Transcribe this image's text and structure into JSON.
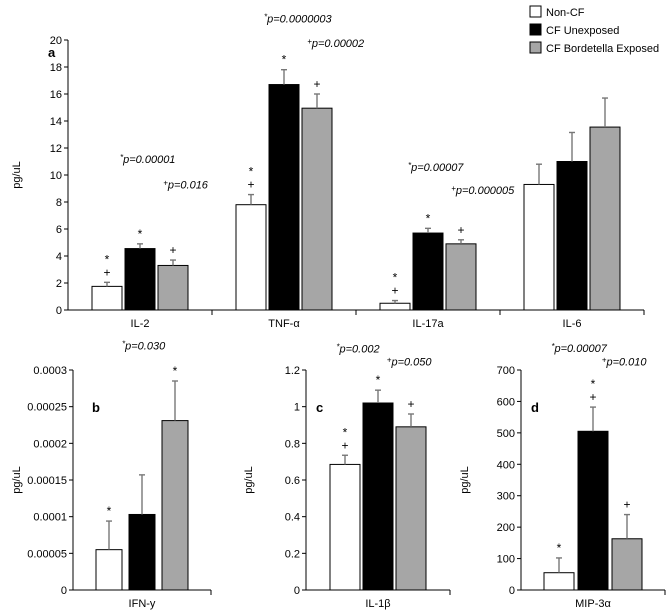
{
  "legend": [
    {
      "label": "Non-CF",
      "color": "#ffffff"
    },
    {
      "label": "CF Unexposed",
      "color": "#000000"
    },
    {
      "label": "CF Bordetella Exposed",
      "color": "#a6a6a6"
    }
  ],
  "chart_data": [
    {
      "id": "a",
      "type": "bar",
      "panel_label": "a",
      "ylabel": "pg/uL",
      "ylim": [
        0,
        20
      ],
      "yticks": [
        "0",
        "2",
        "4",
        "6",
        "8",
        "10",
        "12",
        "14",
        "16",
        "18",
        "20"
      ],
      "categories": [
        "IL-2",
        "TNF-α",
        "IL-17a",
        "IL-6"
      ],
      "series": [
        {
          "name": "Non-CF",
          "values": [
            1.75,
            7.8,
            0.5,
            9.3
          ],
          "errors": [
            0.3,
            0.75,
            0.2,
            1.5
          ]
        },
        {
          "name": "CF Unexposed",
          "values": [
            4.55,
            16.7,
            5.7,
            11.0
          ],
          "errors": [
            0.35,
            1.1,
            0.35,
            2.15
          ]
        },
        {
          "name": "CF Bordetella Exposed",
          "values": [
            3.3,
            14.95,
            4.9,
            13.55
          ],
          "errors": [
            0.4,
            1.05,
            0.3,
            2.15
          ]
        }
      ],
      "markers": [
        {
          "category": 0,
          "series": 0,
          "text": "*\n+"
        },
        {
          "category": 0,
          "series": 1,
          "text": "*"
        },
        {
          "category": 0,
          "series": 2,
          "text": "+"
        },
        {
          "category": 1,
          "series": 0,
          "text": "*\n+"
        },
        {
          "category": 1,
          "series": 1,
          "text": "*"
        },
        {
          "category": 1,
          "series": 2,
          "text": "+"
        },
        {
          "category": 2,
          "series": 0,
          "text": "*\n+"
        },
        {
          "category": 2,
          "series": 1,
          "text": "*"
        },
        {
          "category": 2,
          "series": 2,
          "text": "+"
        }
      ],
      "annotations": [
        {
          "text": "*p=0.00001",
          "category": 0,
          "y": 10.9
        },
        {
          "text": "+p=0.016",
          "category": 0.3,
          "y": 9.0
        },
        {
          "text": "*p=0.0000003",
          "category": 1,
          "y": 21.3
        },
        {
          "text": "+p=0.00002",
          "category": 1.3,
          "y": 19.5
        },
        {
          "text": "*p=0.00007",
          "category": 2,
          "y": 10.3
        },
        {
          "text": "+p=0.000005",
          "category": 2.3,
          "y": 8.6
        }
      ]
    },
    {
      "id": "b",
      "type": "bar",
      "panel_label": "b",
      "ylabel": "pg/uL",
      "ylim": [
        0,
        0.0003
      ],
      "yticks": [
        "0",
        "0.00005",
        "0.0001",
        "0.00015",
        "0.0002",
        "0.00025",
        "0.0003"
      ],
      "categories": [
        "IFN-y"
      ],
      "series": [
        {
          "name": "Non-CF",
          "values": [
            5.5e-05
          ],
          "errors": [
            3.9e-05
          ]
        },
        {
          "name": "CF Unexposed",
          "values": [
            0.000103
          ],
          "errors": [
            5.4e-05
          ]
        },
        {
          "name": "CF Bordetella Exposed",
          "values": [
            0.000231
          ],
          "errors": [
            5.4e-05
          ]
        }
      ],
      "markers": [
        {
          "category": 0,
          "series": 0,
          "text": "*"
        },
        {
          "category": 0,
          "series": 2,
          "text": "*"
        }
      ],
      "annotations": [
        {
          "text": "*p=0.030",
          "category": 0,
          "y": 0.000328
        }
      ]
    },
    {
      "id": "c",
      "type": "bar",
      "panel_label": "c",
      "ylabel": "pg/uL",
      "ylim": [
        0,
        1.2
      ],
      "yticks": [
        "0",
        "0.2",
        "0.4",
        "0.6",
        "0.8",
        "1",
        "1.2"
      ],
      "categories": [
        "IL-1β"
      ],
      "series": [
        {
          "name": "Non-CF",
          "values": [
            0.685
          ],
          "errors": [
            0.05
          ]
        },
        {
          "name": "CF Unexposed",
          "values": [
            1.02
          ],
          "errors": [
            0.07
          ]
        },
        {
          "name": "CF Bordetella Exposed",
          "values": [
            0.89
          ],
          "errors": [
            0.07
          ]
        }
      ],
      "markers": [
        {
          "category": 0,
          "series": 0,
          "text": "*\n+"
        },
        {
          "category": 0,
          "series": 1,
          "text": "*"
        },
        {
          "category": 0,
          "series": 2,
          "text": "+"
        }
      ],
      "annotations": [
        {
          "text": "*p=0.002",
          "category": -0.15,
          "y": 1.295
        },
        {
          "text": "+p=0.050",
          "category": 0.2,
          "y": 1.225
        }
      ]
    },
    {
      "id": "d",
      "type": "bar",
      "panel_label": "d",
      "ylabel": "pg/uL",
      "ylim": [
        0,
        700
      ],
      "yticks": [
        "0",
        "100",
        "200",
        "300",
        "400",
        "500",
        "600",
        "700"
      ],
      "categories": [
        "MIP-3α"
      ],
      "series": [
        {
          "name": "Non-CF",
          "values": [
            55
          ],
          "errors": [
            47
          ]
        },
        {
          "name": "CF Unexposed",
          "values": [
            505
          ],
          "errors": [
            77
          ]
        },
        {
          "name": "CF Bordetella Exposed",
          "values": [
            163
          ],
          "errors": [
            77
          ]
        }
      ],
      "markers": [
        {
          "category": 0,
          "series": 0,
          "text": "*"
        },
        {
          "category": 0,
          "series": 1,
          "text": "*\n+"
        },
        {
          "category": 0,
          "series": 2,
          "text": "+"
        }
      ],
      "annotations": [
        {
          "text": "*p=0.00007",
          "category": -0.15,
          "y": 758
        },
        {
          "text": "+p=0.010",
          "category": 0.2,
          "y": 715
        }
      ]
    }
  ]
}
